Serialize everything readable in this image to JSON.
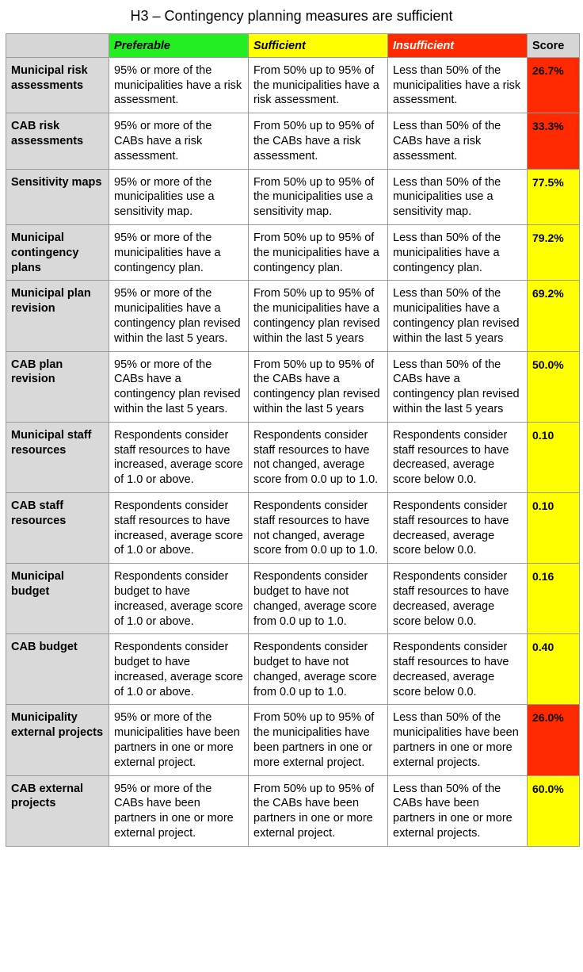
{
  "title": "H3 – Contingency planning measures are sufficient",
  "colors": {
    "preferable": "#22ee22",
    "sufficient": "#ffff00",
    "insufficient": "#ff2a00",
    "header_gray": "#d6d6d6",
    "rowhead_gray": "#d9d9d9"
  },
  "headers": {
    "blank": "",
    "preferable": "Preferable",
    "sufficient": "Sufficient",
    "insufficient": "Insufficient",
    "score": "Score"
  },
  "rows": [
    {
      "label": "Municipal risk assessments",
      "preferable": "95% or more of the municipalities have a risk assessment.",
      "sufficient": "From 50% up to 95% of the municipalities have a risk assessment.",
      "insufficient": "Less than 50% of the municipalities have a risk assessment.",
      "score": "26.7%",
      "rating": "insufficient"
    },
    {
      "label": "CAB risk assessments",
      "preferable": "95% or more of the CABs have a risk assessment.",
      "sufficient": "From 50% up to 95% of the CABs have a risk assessment.",
      "insufficient": "Less than 50% of the CABs have a risk assessment.",
      "score": "33.3%",
      "rating": "insufficient"
    },
    {
      "label": "Sensitivity maps",
      "preferable": "95% or more of the municipalities use a sensitivity map.",
      "sufficient": "From 50% up to 95% of the municipalities use a sensitivity map.",
      "insufficient": "Less than 50% of the municipalities use a sensitivity map.",
      "score": "77.5%",
      "rating": "sufficient"
    },
    {
      "label": "Municipal contingency plans",
      "preferable": "95% or more of the municipalities have a contingency plan.",
      "sufficient": "From 50% up to 95% of the municipalities have a contingency plan.",
      "insufficient": "Less than 50% of the municipalities have a contingency plan.",
      "score": "79.2%",
      "rating": "sufficient"
    },
    {
      "label": "Municipal plan revision",
      "preferable": "95% or more of the municipalities have a contingency plan revised within the last 5 years.",
      "sufficient": "From 50% up to 95% of the municipalities have a contingency plan revised within the last 5 years",
      "insufficient": "Less than 50% of the municipalities have a contingency plan revised within the last 5 years",
      "score": "69.2%",
      "rating": "sufficient"
    },
    {
      "label": "CAB plan revision",
      "preferable": "95% or more of the CABs have a contingency plan revised within the last 5 years.",
      "sufficient": "From 50% up to 95% of the CABs have a contingency plan revised within the last 5 years",
      "insufficient": "Less than 50% of the CABs have a contingency plan revised within the last 5 years",
      "score": "50.0%",
      "rating": "sufficient"
    },
    {
      "label": "Municipal staff resources",
      "preferable": "Respondents consider staff resources to have increased, average score of 1.0 or above.",
      "sufficient": "Respondents consider staff resources to have not changed, average score from 0.0 up to 1.0.",
      "insufficient": "Respondents consider staff resources to have decreased, average score below 0.0.",
      "score": "0.10",
      "rating": "sufficient"
    },
    {
      "label": "CAB staff resources",
      "preferable": "Respondents consider staff resources to have increased, average score of 1.0 or above.",
      "sufficient": "Respondents consider staff resources to have not changed, average score from 0.0 up to 1.0.",
      "insufficient": "Respondents consider staff resources to have decreased, average score below 0.0.",
      "score": "0.10",
      "rating": "sufficient"
    },
    {
      "label": "Municipal budget",
      "preferable": "Respondents consider budget to have increased, average score of 1.0 or above.",
      "sufficient": "Respondents consider budget to have not changed, average score from 0.0 up to 1.0.",
      "insufficient": "Respondents consider staff resources to have decreased, average score below 0.0.",
      "score": "0.16",
      "rating": "sufficient"
    },
    {
      "label": "CAB budget",
      "preferable": "Respondents consider budget to have increased, average score of 1.0 or above.",
      "sufficient": "Respondents consider budget to have not changed, average score from 0.0 up to 1.0.",
      "insufficient": "Respondents consider staff resources to have decreased, average score below 0.0.",
      "score": "0.40",
      "rating": "sufficient"
    },
    {
      "label": "Municipality external projects",
      "preferable": "95% or more of the municipalities have been partners in one or more external project.",
      "sufficient": "From 50% up to 95% of the municipalities have been partners in one or more external project.",
      "insufficient": "Less than 50% of the municipalities have been partners in one or more external projects.",
      "score": "26.0%",
      "rating": "insufficient"
    },
    {
      "label": "CAB external projects",
      "preferable": "95% or more of the CABs have been partners in one or more external project.",
      "sufficient": "From 50% up to 95% of the CABs have been partners in one or more external project.",
      "insufficient": "Less than 50% of the CABs have been partners in one or more external projects.",
      "score": "60.0%",
      "rating": "sufficient"
    }
  ]
}
